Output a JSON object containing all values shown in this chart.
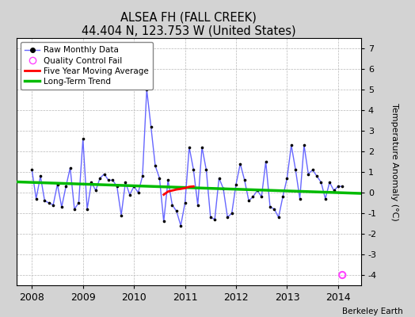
{
  "title": "ALSEA FH (FALL CREEK)",
  "subtitle": "44.404 N, 123.753 W (United States)",
  "ylabel": "Temperature Anomaly (°C)",
  "credit": "Berkeley Earth",
  "bg_color": "#d3d3d3",
  "plot_bg_color": "#ffffff",
  "grid_color": "#b8b8b8",
  "ylim": [
    -4.5,
    7.5
  ],
  "yticks": [
    -4,
    -3,
    -2,
    -1,
    0,
    1,
    2,
    3,
    4,
    5,
    6,
    7
  ],
  "xlim": [
    2007.7,
    2014.45
  ],
  "xticks": [
    2008,
    2009,
    2010,
    2011,
    2012,
    2013,
    2014
  ],
  "raw_x": [
    2008.0,
    2008.083,
    2008.167,
    2008.25,
    2008.333,
    2008.417,
    2008.5,
    2008.583,
    2008.667,
    2008.75,
    2008.833,
    2008.917,
    2009.0,
    2009.083,
    2009.167,
    2009.25,
    2009.333,
    2009.417,
    2009.5,
    2009.583,
    2009.667,
    2009.75,
    2009.833,
    2009.917,
    2010.0,
    2010.083,
    2010.167,
    2010.25,
    2010.333,
    2010.417,
    2010.5,
    2010.583,
    2010.667,
    2010.75,
    2010.833,
    2010.917,
    2011.0,
    2011.083,
    2011.167,
    2011.25,
    2011.333,
    2011.417,
    2011.5,
    2011.583,
    2011.667,
    2011.75,
    2011.833,
    2011.917,
    2012.0,
    2012.083,
    2012.167,
    2012.25,
    2012.333,
    2012.417,
    2012.5,
    2012.583,
    2012.667,
    2012.75,
    2012.833,
    2012.917,
    2013.0,
    2013.083,
    2013.167,
    2013.25,
    2013.333,
    2013.417,
    2013.5,
    2013.583,
    2013.667,
    2013.75,
    2013.833,
    2013.917,
    2014.0,
    2014.083
  ],
  "raw_y": [
    1.1,
    -0.3,
    0.8,
    -0.4,
    -0.5,
    -0.6,
    0.4,
    -0.7,
    0.3,
    1.2,
    -0.8,
    -0.5,
    2.6,
    -0.8,
    0.5,
    0.1,
    0.7,
    0.9,
    0.6,
    0.6,
    0.3,
    -1.1,
    0.5,
    -0.1,
    0.3,
    0.0,
    0.8,
    5.0,
    3.2,
    1.3,
    0.7,
    -1.4,
    0.6,
    -0.6,
    -0.9,
    -1.6,
    -0.5,
    2.2,
    1.1,
    -0.6,
    2.2,
    1.1,
    -1.2,
    -1.3,
    0.7,
    0.2,
    -1.2,
    -1.0,
    0.4,
    1.4,
    0.6,
    -0.4,
    -0.2,
    0.1,
    -0.2,
    1.5,
    -0.7,
    -0.8,
    -1.2,
    -0.2,
    0.7,
    2.3,
    1.1,
    -0.3,
    2.3,
    0.9,
    1.1,
    0.8,
    0.5,
    -0.3,
    0.5,
    0.1,
    0.3,
    0.3
  ],
  "ma_x": [
    2010.583,
    2010.667,
    2010.75,
    2010.833,
    2010.917,
    2011.0,
    2011.083,
    2011.167
  ],
  "ma_y": [
    -0.1,
    0.05,
    0.1,
    0.15,
    0.18,
    0.22,
    0.28,
    0.3
  ],
  "trend_x": [
    2007.7,
    2014.45
  ],
  "trend_y": [
    0.52,
    -0.04
  ],
  "qc_fail_x": [
    2014.083
  ],
  "qc_fail_y": [
    -4.0
  ],
  "line_color": "#6666ff",
  "dot_color": "#000000",
  "ma_color": "#ff0000",
  "trend_color": "#00bb00",
  "qc_color": "#ff44ff"
}
